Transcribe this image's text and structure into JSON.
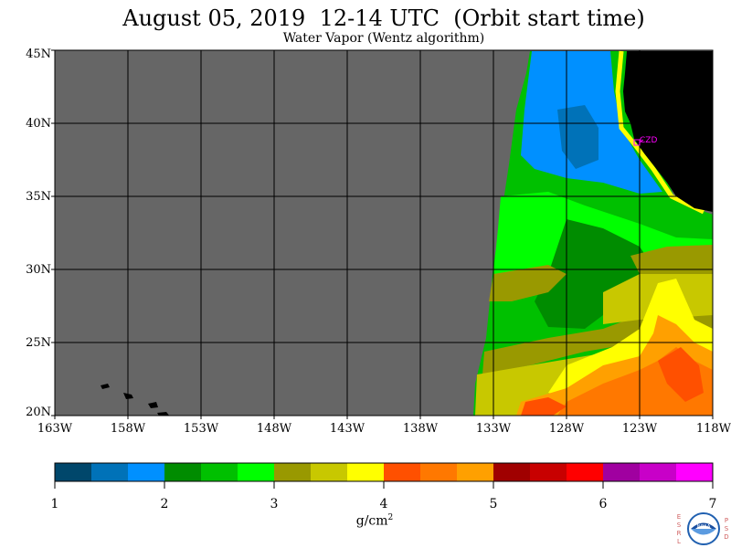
{
  "title": "August 05, 2019  12-14 UTC  (Orbit start time)",
  "subtitle": "Water Vapor (Wentz algorithm)",
  "station_label": "CZD",
  "lat_labels": [
    "45N",
    "40N",
    "35N",
    "30N",
    "25N",
    "20N"
  ],
  "lon_labels": [
    "163W",
    "158W",
    "153W",
    "148W",
    "143W",
    "138W",
    "133W",
    "128W",
    "123W",
    "118W"
  ],
  "colorbar": {
    "tick_labels": [
      "1",
      "2",
      "3",
      "4",
      "5",
      "6",
      "7"
    ],
    "units_base": "g/cm",
    "units_exp": "2",
    "colors": [
      "#00476b",
      "#0072b8",
      "#0090ff",
      "#008c00",
      "#00c000",
      "#00ff00",
      "#999900",
      "#c8c800",
      "#ffff00",
      "#ff5000",
      "#ff7800",
      "#ffa000",
      "#a00000",
      "#c80000",
      "#ff0000",
      "#a000a0",
      "#c800c8",
      "#ff00ff"
    ]
  },
  "colors": {
    "no_data": "#666666",
    "land": "#000000",
    "grid": "#000000",
    "station": "#ff00ff"
  },
  "logo": {
    "left_letters": "ESRL",
    "right_letters": "PSD",
    "center_text": "NOAA"
  }
}
